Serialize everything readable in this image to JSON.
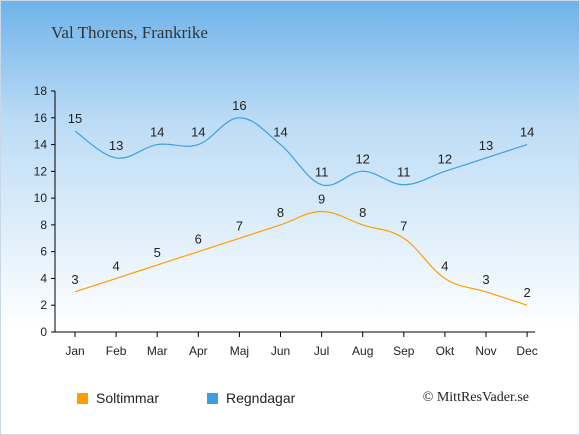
{
  "page_title": "Val Thorens, Frankrike",
  "credit": "© MittResVader.se",
  "chart_data": {
    "type": "line",
    "categories": [
      "Jan",
      "Feb",
      "Mar",
      "Apr",
      "Maj",
      "Jun",
      "Jul",
      "Aug",
      "Sep",
      "Okt",
      "Nov",
      "Dec"
    ],
    "ylim": [
      0,
      18
    ],
    "yticks": [
      "0",
      "2",
      "4",
      "6",
      "8",
      "10",
      "12",
      "14",
      "16",
      "18"
    ],
    "grid": false,
    "legend_position": "bottom-left",
    "series": [
      {
        "name": "Soltimmar",
        "color": "#ff9e00",
        "values": [
          3,
          4,
          5,
          6,
          7,
          8,
          9,
          8,
          7,
          4,
          3,
          2
        ]
      },
      {
        "name": "Regndagar",
        "color": "#3e9ee4",
        "values": [
          15,
          13,
          14,
          14,
          16,
          14,
          11,
          12,
          11,
          12,
          13,
          14
        ]
      }
    ]
  }
}
